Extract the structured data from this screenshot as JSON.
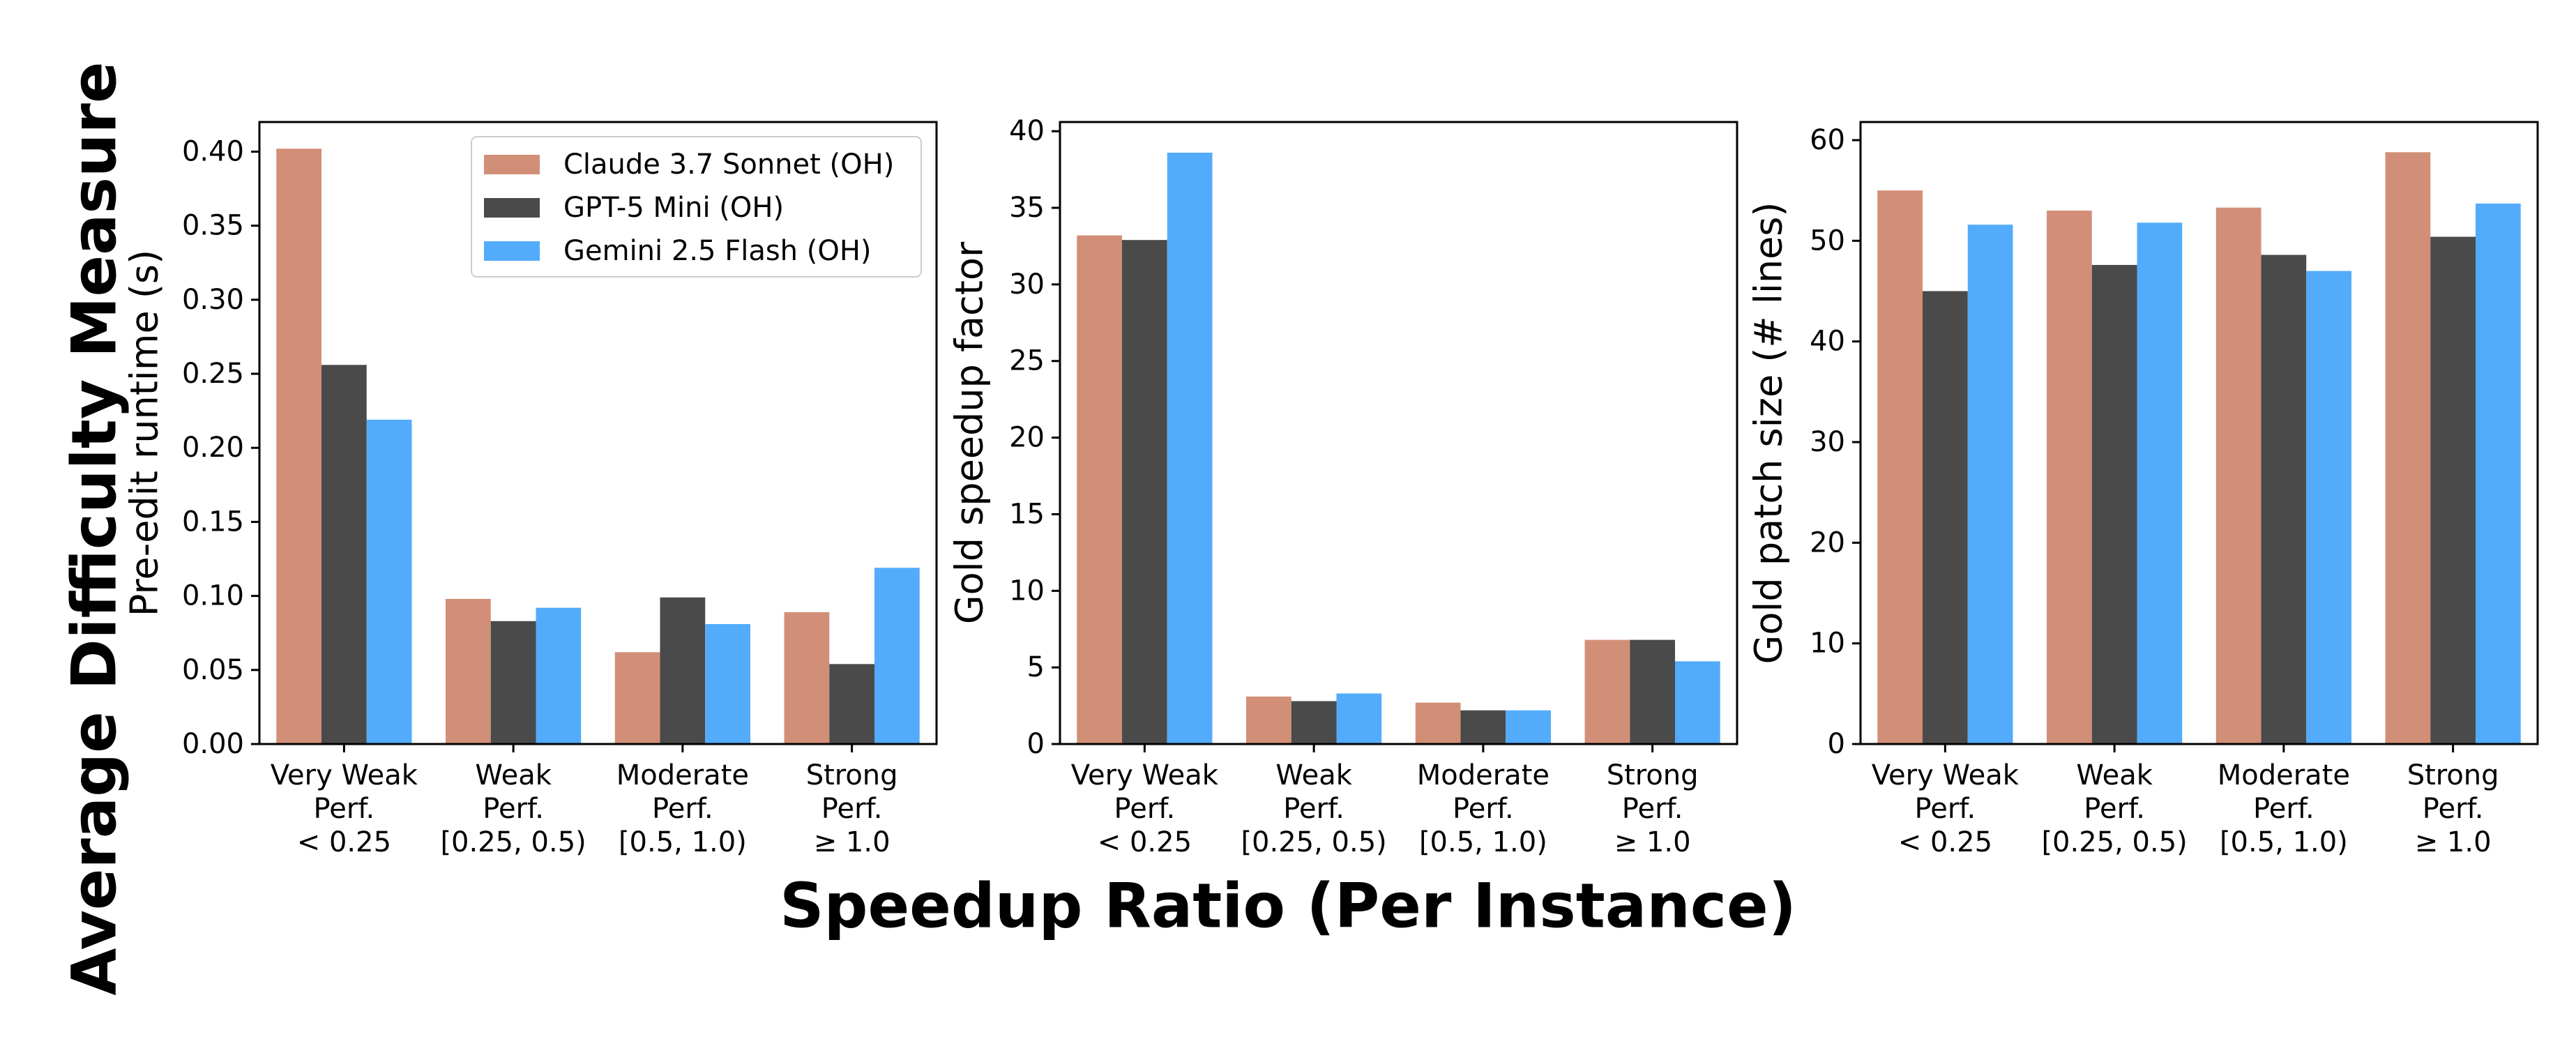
{
  "figure": {
    "supylabel": "Average Difficulty Measure",
    "supxlabel": "Speedup Ratio (Per Instance)"
  },
  "colors": {
    "claude": "#D28F77",
    "gpt": "#4A4A4A",
    "gemini": "#52ACFB"
  },
  "chart_data": [
    {
      "type": "bar",
      "title": "",
      "xlabel": "",
      "ylabel": "Pre-edit runtime (s)",
      "categories": [
        [
          "Very Weak",
          "Perf.",
          "< 0.25"
        ],
        [
          "Weak",
          "Perf.",
          "[0.25, 0.5)"
        ],
        [
          "Moderate",
          "Perf.",
          "[0.5, 1.0)"
        ],
        [
          "Strong",
          "Perf.",
          "≥ 1.0"
        ]
      ],
      "ylim": [
        0,
        0.42
      ],
      "yticks": [
        0.0,
        0.05,
        0.1,
        0.15,
        0.2,
        0.25,
        0.3,
        0.35,
        0.4
      ],
      "ytick_labels": [
        "0.00",
        "0.05",
        "0.10",
        "0.15",
        "0.20",
        "0.25",
        "0.30",
        "0.35",
        "0.40"
      ],
      "legend": "top-right",
      "grid": false,
      "series": [
        {
          "name": "Claude 3.7 Sonnet (OH)",
          "color": "#D28F77",
          "values": [
            0.402,
            0.098,
            0.062,
            0.089
          ]
        },
        {
          "name": "GPT-5 Mini (OH)",
          "color": "#4A4A4A",
          "values": [
            0.256,
            0.083,
            0.099,
            0.054
          ]
        },
        {
          "name": "Gemini 2.5 Flash (OH)",
          "color": "#52ACFB",
          "values": [
            0.219,
            0.092,
            0.081,
            0.119
          ]
        }
      ]
    },
    {
      "type": "bar",
      "title": "",
      "xlabel": "",
      "ylabel": "Gold speedup factor",
      "categories": [
        [
          "Very Weak",
          "Perf.",
          "< 0.25"
        ],
        [
          "Weak",
          "Perf.",
          "[0.25, 0.5)"
        ],
        [
          "Moderate",
          "Perf.",
          "[0.5, 1.0)"
        ],
        [
          "Strong",
          "Perf.",
          "≥ 1.0"
        ]
      ],
      "ylim": [
        0,
        40.6
      ],
      "yticks": [
        0,
        5,
        10,
        15,
        20,
        25,
        30,
        35,
        40
      ],
      "ytick_labels": [
        "0",
        "5",
        "10",
        "15",
        "20",
        "25",
        "30",
        "35",
        "40"
      ],
      "grid": false,
      "series": [
        {
          "name": "Claude 3.7 Sonnet (OH)",
          "color": "#D28F77",
          "values": [
            33.2,
            3.1,
            2.7,
            6.8
          ]
        },
        {
          "name": "GPT-5 Mini (OH)",
          "color": "#4A4A4A",
          "values": [
            32.9,
            2.8,
            2.2,
            6.8
          ]
        },
        {
          "name": "Gemini 2.5 Flash (OH)",
          "color": "#52ACFB",
          "values": [
            38.6,
            3.3,
            2.2,
            5.4
          ]
        }
      ]
    },
    {
      "type": "bar",
      "title": "",
      "xlabel": "",
      "ylabel": "Gold patch size (# lines)",
      "categories": [
        [
          "Very Weak",
          "Perf.",
          "< 0.25"
        ],
        [
          "Weak",
          "Perf.",
          "[0.25, 0.5)"
        ],
        [
          "Moderate",
          "Perf.",
          "[0.5, 1.0)"
        ],
        [
          "Strong",
          "Perf.",
          "≥ 1.0"
        ]
      ],
      "ylim": [
        0,
        61.8
      ],
      "yticks": [
        0,
        10,
        20,
        30,
        40,
        50,
        60
      ],
      "ytick_labels": [
        "0",
        "10",
        "20",
        "30",
        "40",
        "50",
        "60"
      ],
      "grid": false,
      "series": [
        {
          "name": "Claude 3.7 Sonnet (OH)",
          "color": "#D28F77",
          "values": [
            55.0,
            53.0,
            53.3,
            58.8
          ]
        },
        {
          "name": "GPT-5 Mini (OH)",
          "color": "#4A4A4A",
          "values": [
            45.0,
            47.6,
            48.6,
            50.4
          ]
        },
        {
          "name": "Gemini 2.5 Flash (OH)",
          "color": "#52ACFB",
          "values": [
            51.6,
            51.8,
            47.0,
            53.7
          ]
        }
      ]
    }
  ]
}
